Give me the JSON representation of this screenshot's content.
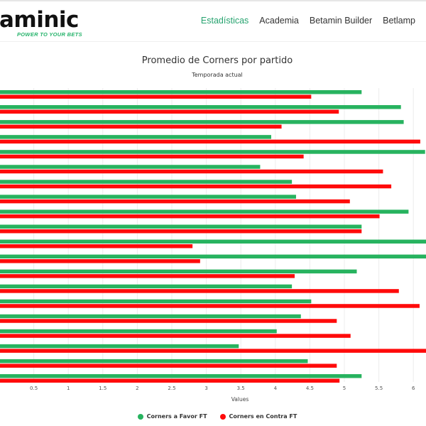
{
  "header": {
    "logo_text": "aminic",
    "tagline": "POWER TO YOUR BETS",
    "nav": [
      {
        "label": "Estadísticas",
        "active": true
      },
      {
        "label": "Academia",
        "active": false
      },
      {
        "label": "Betamin Builder",
        "active": false
      },
      {
        "label": "Betlamp",
        "active": false
      }
    ]
  },
  "colors": {
    "accent": "#26a36f",
    "series_favor": "#27b35f",
    "series_contra": "#ff0a0a"
  },
  "chart_data": {
    "type": "bar",
    "orientation": "horizontal",
    "title": "Promedio de Corners por partido",
    "subtitle": "Temporada actual",
    "xlabel": "Values",
    "x_ticks": [
      "0.5",
      "1",
      "1.5",
      "2",
      "2.5",
      "3",
      "3.5",
      "4",
      "4.5",
      "5",
      "5.5",
      "6"
    ],
    "xlim": [
      0,
      6.2
    ],
    "grid": true,
    "legend_position": "bottom",
    "series": [
      {
        "name": "Corners a Favor FT",
        "color": "#27b35f",
        "values": [
          5.25,
          5.82,
          5.86,
          3.94,
          6.17,
          3.78,
          4.24,
          4.3,
          5.93,
          5.25,
          6.38,
          6.4,
          5.18,
          4.24,
          4.52,
          4.37,
          4.02,
          3.47,
          4.47,
          5.25
        ]
      },
      {
        "name": "Corners en Contra FT",
        "color": "#ff0a0a",
        "values": [
          4.52,
          4.92,
          4.09,
          6.1,
          4.41,
          5.56,
          5.68,
          5.08,
          5.51,
          5.25,
          2.8,
          2.91,
          4.28,
          5.79,
          6.09,
          4.89,
          5.09,
          6.4,
          4.89,
          4.93
        ]
      }
    ]
  }
}
